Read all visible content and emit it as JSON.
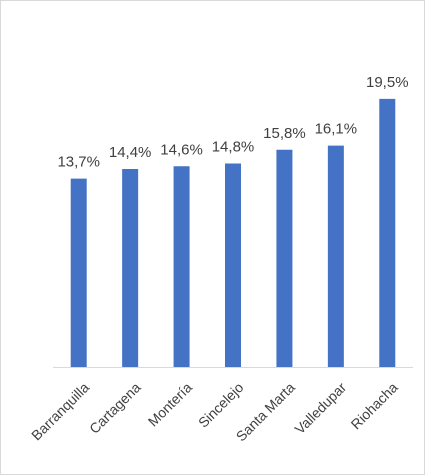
{
  "chart_data": {
    "type": "bar",
    "categories": [
      "Barranquilla",
      "Cartagena",
      "Montería",
      "Sincelejo",
      "Santa Marta",
      "Valledupar",
      "Riohacha"
    ],
    "values": [
      13.7,
      14.4,
      14.6,
      14.8,
      15.8,
      16.1,
      19.5
    ],
    "data_labels": [
      "13,7%",
      "14,4%",
      "14,6%",
      "14,8%",
      "15,8%",
      "16,1%",
      "19,5%"
    ],
    "title": "",
    "xlabel": "",
    "ylabel": "",
    "ylim": [
      0,
      20
    ],
    "grid": false,
    "legend": "none",
    "bar_color": "#4472C4",
    "axis_color": "#d9d9d9",
    "text_color": "#404040"
  }
}
